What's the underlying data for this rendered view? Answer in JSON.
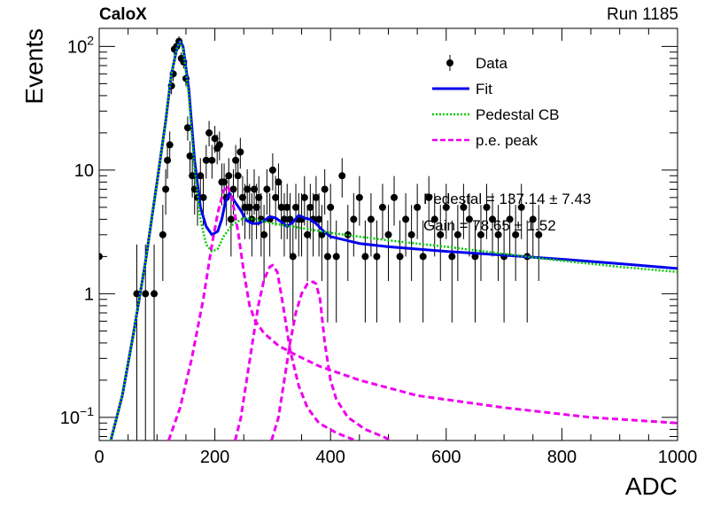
{
  "header": {
    "experiment": "CaloX",
    "run": "Run 1185"
  },
  "chart_data": {
    "type": "scatter",
    "xlabel": "ADC",
    "ylabel": "Events",
    "xlim": [
      0,
      1000
    ],
    "ylim": [
      0.065,
      140
    ],
    "yscale": "log",
    "xticks": [
      0,
      200,
      400,
      600,
      800,
      1000
    ],
    "xtick_labels": [
      "0",
      "200",
      "400",
      "600",
      "800",
      "1000"
    ],
    "yticks": [
      0.1,
      1,
      10,
      100
    ],
    "ytick_labels": [
      "10⁻¹",
      "1",
      "10",
      "10²"
    ],
    "legend_position": "top-right",
    "legend": [
      {
        "label": "Data",
        "style": "marker",
        "color": "#000000"
      },
      {
        "label": "Fit",
        "style": "solid",
        "color": "#0000ee"
      },
      {
        "label": "Pedestal CB",
        "style": "dotted",
        "color": "#00cc00"
      },
      {
        "label": "p.e. peak",
        "style": "dashed",
        "color": "#ee00ee"
      }
    ],
    "annotations": [
      "Pedestal = 137.14 ± 7.43",
      "Gain = 78.65 ± 1.52"
    ],
    "series": [
      {
        "kind": "data",
        "x": [
          0,
          65,
          80,
          95,
          110,
          115,
          118,
          122,
          125,
          128,
          130,
          134,
          138,
          142,
          146,
          150,
          153,
          157,
          161,
          165,
          170,
          175,
          180,
          185,
          190,
          195,
          200,
          204,
          208,
          212,
          216,
          220,
          224,
          228,
          232,
          236,
          240,
          244,
          248,
          252,
          256,
          260,
          264,
          268,
          272,
          276,
          280,
          285,
          290,
          295,
          300,
          305,
          310,
          315,
          320,
          325,
          330,
          335,
          340,
          345,
          350,
          355,
          360,
          365,
          370,
          375,
          380,
          385,
          390,
          395,
          400,
          410,
          420,
          430,
          440,
          450,
          460,
          470,
          480,
          490,
          500,
          510,
          520,
          530,
          540,
          550,
          560,
          570,
          580,
          590,
          600,
          610,
          620,
          630,
          640,
          650,
          660,
          670,
          680,
          690,
          700,
          710,
          720,
          730,
          740,
          750,
          760
        ],
        "y": [
          2,
          1,
          1,
          1,
          3,
          7,
          12,
          16,
          48,
          60,
          95,
          100,
          110,
          80,
          75,
          55,
          22,
          13,
          9,
          7,
          6,
          9,
          6,
          12,
          20,
          12,
          18,
          15,
          16,
          8,
          8,
          6,
          9,
          4,
          7,
          12,
          9,
          14,
          6,
          5,
          7,
          5,
          4,
          7,
          5,
          6,
          4,
          3,
          7,
          4,
          10,
          6,
          8,
          5,
          4,
          5,
          4,
          2,
          5,
          4,
          4,
          6,
          3,
          5,
          4,
          6,
          4,
          3,
          7,
          2,
          5,
          2,
          9,
          3,
          4,
          6,
          2,
          4,
          2,
          5,
          3,
          6,
          2,
          4,
          3,
          5,
          2,
          6,
          4,
          3,
          5,
          2,
          3,
          5,
          4,
          2,
          3,
          5,
          4,
          3,
          2,
          4,
          3,
          5,
          2,
          4,
          3
        ]
      },
      {
        "name": "Fit",
        "kind": "curve",
        "x": [
          20,
          40,
          60,
          80,
          100,
          115,
          125,
          135,
          140,
          145,
          155,
          165,
          175,
          185,
          195,
          205,
          212,
          218,
          225,
          235,
          245,
          255,
          265,
          275,
          285,
          295,
          305,
          315,
          325,
          335,
          345,
          355,
          365,
          375,
          385,
          400,
          450,
          500,
          600,
          700,
          800,
          900,
          1000
        ],
        "y": [
          0.065,
          0.15,
          0.5,
          1.8,
          8,
          25,
          60,
          100,
          110,
          100,
          45,
          12,
          5,
          3.5,
          3,
          3.2,
          4,
          5.5,
          6.5,
          5.5,
          4.7,
          3.9,
          3.7,
          3.7,
          3.9,
          4.2,
          4.1,
          3.8,
          3.5,
          3.8,
          4.3,
          4.1,
          4.0,
          3.7,
          3.3,
          2.9,
          2.55,
          2.4,
          2.2,
          2.05,
          1.9,
          1.75,
          1.6
        ]
      },
      {
        "name": "Pedestal CB",
        "kind": "curve",
        "x": [
          20,
          40,
          60,
          80,
          100,
          115,
          125,
          135,
          140,
          145,
          155,
          165,
          175,
          185,
          195,
          205,
          215,
          230,
          250,
          270,
          300,
          350,
          400,
          500,
          600,
          700,
          800,
          900,
          1000
        ],
        "y": [
          0.065,
          0.15,
          0.5,
          1.8,
          8,
          25,
          60,
          100,
          108,
          95,
          40,
          10,
          4,
          2.5,
          2.2,
          2.3,
          2.9,
          3.6,
          4.1,
          4.0,
          3.7,
          3.4,
          3.1,
          2.7,
          2.4,
          2.1,
          1.85,
          1.65,
          1.5
        ]
      },
      {
        "name": "p.e. peak",
        "kind": "curve",
        "x": [
          120,
          140,
          160,
          180,
          195,
          205,
          215,
          222,
          230,
          240,
          250,
          260,
          270,
          285,
          310,
          340,
          380,
          450,
          550,
          700,
          850,
          1000
        ],
        "y": [
          0.065,
          0.12,
          0.3,
          0.9,
          2.5,
          4.5,
          6.8,
          7.5,
          5.8,
          3.2,
          1.5,
          0.8,
          0.6,
          0.48,
          0.38,
          0.32,
          0.26,
          0.2,
          0.15,
          0.12,
          0.1,
          0.09
        ]
      },
      {
        "name": "p.e. peak",
        "kind": "curve",
        "x": [
          235,
          245,
          255,
          265,
          275,
          285,
          295,
          300,
          308,
          318,
          330,
          345,
          360,
          380,
          410,
          440
        ],
        "y": [
          0.065,
          0.1,
          0.2,
          0.4,
          0.8,
          1.3,
          1.65,
          1.7,
          1.5,
          0.8,
          0.35,
          0.18,
          0.12,
          0.09,
          0.075,
          0.066
        ]
      },
      {
        "name": "p.e. peak",
        "kind": "curve",
        "x": [
          298,
          310,
          320,
          330,
          340,
          350,
          360,
          370,
          375,
          382,
          390,
          400,
          410,
          430,
          460,
          490,
          505
        ],
        "y": [
          0.065,
          0.1,
          0.2,
          0.4,
          0.7,
          1.0,
          1.2,
          1.25,
          1.2,
          0.9,
          0.4,
          0.2,
          0.14,
          0.1,
          0.08,
          0.07,
          0.065
        ]
      }
    ]
  }
}
